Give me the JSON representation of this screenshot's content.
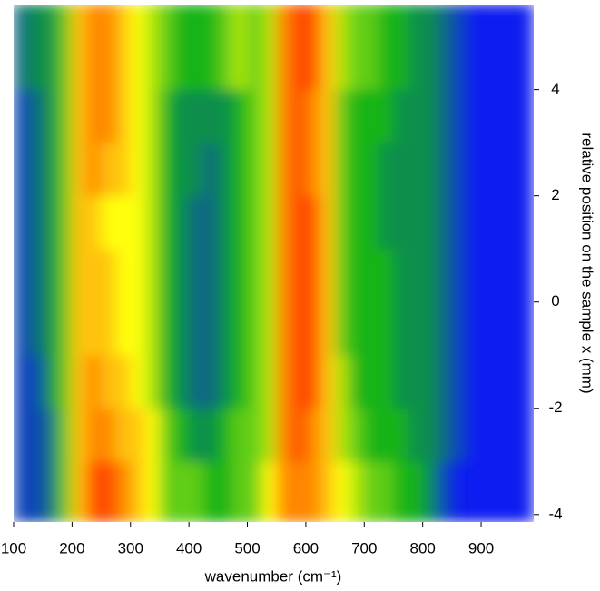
{
  "chart_data": {
    "type": "heatmap",
    "xlabel": "wavenumber (cm⁻¹)",
    "ylabel": "relative position on the sample x (mm)",
    "xlim": [
      100,
      990
    ],
    "ylim": [
      -4.14,
      5.6
    ],
    "xticks": [
      100,
      200,
      300,
      400,
      500,
      600,
      700,
      800,
      900
    ],
    "yticks": [
      -4,
      -2,
      0,
      2,
      4
    ],
    "x_bins": [
      100,
      125,
      150,
      175,
      200,
      225,
      250,
      275,
      300,
      325,
      350,
      375,
      400,
      425,
      450,
      475,
      500,
      525,
      550,
      575,
      600,
      625,
      650,
      675,
      700,
      725,
      750,
      775,
      800,
      825,
      850,
      875,
      900,
      925,
      950,
      975,
      990
    ],
    "y_bins": [
      -4.14,
      -3,
      -2,
      -1,
      0,
      1,
      2,
      3,
      4,
      5.6
    ],
    "colorscale": [
      [
        0,
        "#0a1ef0"
      ],
      [
        4,
        "#12b414"
      ],
      [
        7,
        "#ffff10"
      ],
      [
        10,
        "#ff4a00"
      ]
    ],
    "values": [
      [
        1,
        1,
        2,
        5,
        8,
        10,
        10,
        9,
        8,
        7,
        5,
        5,
        5,
        4,
        4,
        5,
        5,
        7,
        9,
        9,
        9,
        8,
        7,
        6,
        5,
        5,
        4,
        4,
        3,
        1,
        0,
        0,
        0,
        0,
        0,
        0
      ],
      [
        1,
        1,
        2,
        5,
        8,
        9,
        9,
        8,
        8,
        7,
        5,
        4,
        3,
        3,
        4,
        5,
        5,
        6,
        9,
        10,
        9,
        8,
        6,
        5,
        4,
        4,
        4,
        3,
        3,
        2,
        1,
        0,
        0,
        0,
        0,
        0
      ],
      [
        1,
        1,
        3,
        5,
        8,
        9,
        8,
        8,
        7,
        6,
        4,
        3,
        2,
        2,
        3,
        4,
        5,
        6,
        9,
        10,
        10,
        8,
        6,
        4,
        4,
        4,
        3,
        3,
        3,
        2,
        1,
        0,
        0,
        0,
        0,
        0
      ],
      [
        1,
        2,
        3,
        5,
        8,
        8,
        8,
        7,
        7,
        6,
        4,
        3,
        2,
        2,
        3,
        4,
        5,
        6,
        9,
        10,
        10,
        8,
        5,
        4,
        4,
        4,
        3,
        3,
        3,
        2,
        1,
        0,
        0,
        0,
        0,
        0
      ],
      [
        1,
        2,
        3,
        5,
        8,
        8,
        8,
        7,
        7,
        6,
        4,
        3,
        2,
        2,
        3,
        4,
        5,
        6,
        9,
        10,
        10,
        8,
        5,
        4,
        4,
        4,
        3,
        3,
        3,
        2,
        1,
        0,
        0,
        0,
        0,
        0
      ],
      [
        1,
        2,
        3,
        5,
        8,
        8,
        7,
        7,
        7,
        6,
        4,
        3,
        2,
        2,
        3,
        4,
        5,
        6,
        9,
        10,
        10,
        8,
        5,
        4,
        4,
        3,
        3,
        3,
        3,
        2,
        1,
        0,
        0,
        0,
        0,
        0
      ],
      [
        1,
        2,
        3,
        5,
        8,
        9,
        8,
        8,
        7,
        6,
        4,
        3,
        3,
        2,
        3,
        4,
        5,
        6,
        9,
        10,
        9,
        8,
        5,
        4,
        4,
        3,
        3,
        3,
        3,
        2,
        1,
        0,
        0,
        0,
        0,
        0
      ],
      [
        1,
        2,
        3,
        5,
        8,
        9,
        9,
        8,
        7,
        6,
        4,
        3,
        3,
        3,
        3,
        4,
        5,
        6,
        9,
        10,
        9,
        8,
        5,
        4,
        4,
        4,
        3,
        3,
        3,
        2,
        1,
        0,
        0,
        0,
        0,
        0
      ],
      [
        2,
        3,
        3,
        5,
        8,
        9,
        9,
        8,
        7,
        6,
        5,
        4,
        4,
        4,
        5,
        6,
        5,
        6,
        9,
        10,
        10,
        8,
        6,
        5,
        5,
        4,
        4,
        3,
        3,
        2,
        1,
        0,
        0,
        0,
        0,
        0
      ]
    ]
  }
}
